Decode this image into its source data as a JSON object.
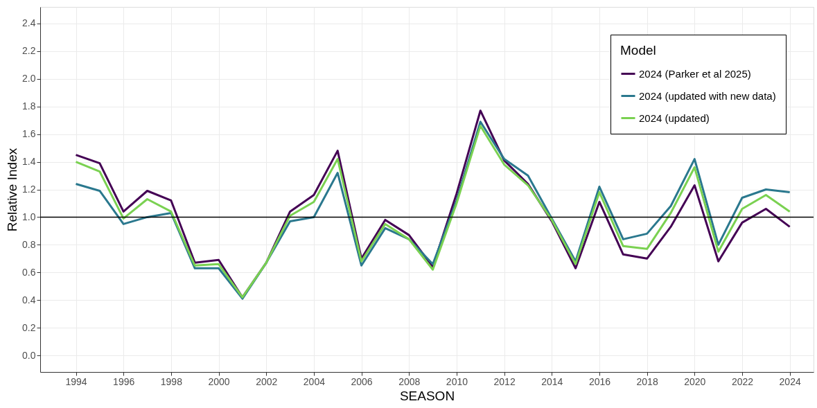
{
  "chart_data": {
    "type": "line",
    "xlabel": "SEASON",
    "ylabel": "Relative Index",
    "legend_title": "Model",
    "x": [
      1994,
      1995,
      1996,
      1997,
      1998,
      1999,
      2000,
      2001,
      2002,
      2003,
      2004,
      2005,
      2006,
      2007,
      2008,
      2009,
      2010,
      2011,
      2012,
      2013,
      2014,
      2015,
      2016,
      2017,
      2018,
      2019,
      2020,
      2021,
      2022,
      2023,
      2024
    ],
    "series": [
      {
        "name": "2024 (Parker et al 2025)",
        "color": "#440154",
        "values": [
          1.45,
          1.39,
          1.04,
          1.19,
          1.12,
          0.67,
          0.69,
          0.42,
          0.67,
          1.04,
          1.16,
          1.48,
          0.7,
          0.98,
          0.87,
          0.64,
          1.17,
          1.77,
          1.41,
          1.24,
          0.97,
          0.63,
          1.11,
          0.73,
          0.7,
          0.93,
          1.23,
          0.68,
          0.96,
          1.06,
          0.93
        ]
      },
      {
        "name": "2024 (updated with new data)",
        "color": "#2a788e",
        "values": [
          1.24,
          1.19,
          0.95,
          1.0,
          1.03,
          0.63,
          0.63,
          0.41,
          0.67,
          0.97,
          1.0,
          1.32,
          0.65,
          0.92,
          0.84,
          0.66,
          1.12,
          1.69,
          1.42,
          1.3,
          0.99,
          0.68,
          1.22,
          0.84,
          0.88,
          1.08,
          1.42,
          0.8,
          1.14,
          1.2,
          1.18
        ]
      },
      {
        "name": "2024 (updated)",
        "color": "#7ad151",
        "values": [
          1.4,
          1.33,
          0.99,
          1.13,
          1.04,
          0.65,
          0.66,
          0.42,
          0.67,
          1.01,
          1.11,
          1.42,
          0.68,
          0.95,
          0.84,
          0.62,
          1.1,
          1.66,
          1.38,
          1.23,
          0.98,
          0.66,
          1.18,
          0.79,
          0.77,
          1.03,
          1.36,
          0.75,
          1.06,
          1.16,
          1.04
        ]
      }
    ],
    "xlim": [
      1992.5,
      2025.0
    ],
    "ylim": [
      -0.12,
      2.52
    ],
    "xticks": [
      1994,
      1996,
      1998,
      2000,
      2002,
      2004,
      2006,
      2008,
      2010,
      2012,
      2014,
      2016,
      2018,
      2020,
      2022,
      2024
    ],
    "yticks": [
      {
        "value": 0,
        "label": "0.0"
      },
      0.2,
      0.4,
      0.6,
      0.8,
      {
        "value": 1,
        "label": "1.0"
      },
      1.2,
      1.4,
      1.6,
      1.8,
      {
        "value": 2,
        "label": "2.0"
      },
      2.2,
      2.4
    ],
    "ref_lines": [
      {
        "axis": "y",
        "value": 1.0,
        "color": "#000000",
        "line_style": "solid"
      }
    ],
    "grid": true,
    "legend": "top right",
    "line_style": "solid",
    "marker": "none"
  }
}
